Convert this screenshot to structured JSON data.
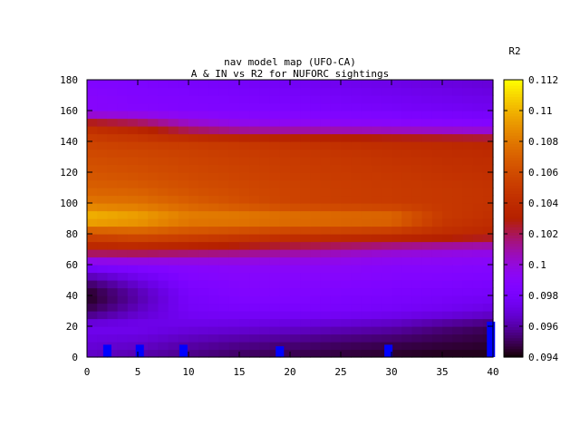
{
  "chart_data": {
    "type": "heatmap",
    "title": "nav model map (UFO-CA)",
    "subtitle": "A & IN vs R2 for NUFORC sightings",
    "xlabel": "",
    "ylabel": "",
    "colorbar_label": "R2",
    "xlim": [
      0,
      40
    ],
    "ylim": [
      0,
      180
    ],
    "x_ticks": [
      0,
      5,
      10,
      15,
      20,
      25,
      30,
      35,
      40
    ],
    "y_ticks": [
      0,
      20,
      40,
      60,
      80,
      100,
      120,
      140,
      160,
      180
    ],
    "colorbar_range": [
      0.094,
      0.112
    ],
    "colorbar_ticks": [
      0.094,
      0.096,
      0.098,
      0.1,
      0.102,
      0.104,
      0.106,
      0.108,
      0.11,
      0.112
    ],
    "colormap": "black-blue-purple-red-orange-yellow (gnuplot pm3d)",
    "y_levels": [
      0,
      10,
      20,
      30,
      40,
      50,
      60,
      70,
      80,
      90,
      100,
      110,
      120,
      130,
      140,
      150,
      160,
      170,
      180
    ],
    "x_levels": [
      0,
      5,
      10,
      15,
      20,
      25,
      30,
      35,
      40
    ],
    "z": [
      [
        0.0965,
        0.096,
        0.0955,
        0.095,
        0.0948,
        0.0946,
        0.0944,
        0.0942,
        0.0942
      ],
      [
        0.097,
        0.0968,
        0.0962,
        0.0958,
        0.0955,
        0.0952,
        0.095,
        0.0948,
        0.0946
      ],
      [
        0.0975,
        0.0975,
        0.0972,
        0.097,
        0.0968,
        0.0965,
        0.0962,
        0.0955,
        0.095
      ],
      [
        0.095,
        0.0965,
        0.0978,
        0.098,
        0.098,
        0.098,
        0.0978,
        0.0975,
        0.097
      ],
      [
        0.0942,
        0.096,
        0.098,
        0.0985,
        0.0985,
        0.0983,
        0.0982,
        0.098,
        0.0978
      ],
      [
        0.0955,
        0.097,
        0.0985,
        0.0988,
        0.0988,
        0.0988,
        0.0986,
        0.0985,
        0.0983
      ],
      [
        0.0985,
        0.0988,
        0.099,
        0.0992,
        0.0992,
        0.0992,
        0.099,
        0.099,
        0.0988
      ],
      [
        0.103,
        0.103,
        0.1025,
        0.102,
        0.1015,
        0.101,
        0.1005,
        0.1002,
        0.1
      ],
      [
        0.106,
        0.1065,
        0.106,
        0.1055,
        0.105,
        0.1048,
        0.1045,
        0.104,
        0.1035
      ],
      [
        0.1105,
        0.1098,
        0.1085,
        0.1085,
        0.1082,
        0.108,
        0.1078,
        0.105,
        0.1042
      ],
      [
        0.108,
        0.1078,
        0.107,
        0.1062,
        0.1055,
        0.1052,
        0.105,
        0.1048,
        0.1045
      ],
      [
        0.107,
        0.1068,
        0.1062,
        0.1058,
        0.1055,
        0.1052,
        0.105,
        0.1048,
        0.1045
      ],
      [
        0.1065,
        0.1062,
        0.1058,
        0.1055,
        0.1052,
        0.105,
        0.1048,
        0.1045,
        0.1042
      ],
      [
        0.106,
        0.1058,
        0.1055,
        0.1052,
        0.105,
        0.1048,
        0.1045,
        0.1042,
        0.104
      ],
      [
        0.1055,
        0.1052,
        0.105,
        0.1048,
        0.1045,
        0.1042,
        0.104,
        0.1038,
        0.1035
      ],
      [
        0.104,
        0.103,
        0.101,
        0.1,
        0.0998,
        0.0996,
        0.0994,
        0.0992,
        0.099
      ],
      [
        0.099,
        0.0988,
        0.0986,
        0.0985,
        0.0984,
        0.0982,
        0.098,
        0.0978,
        0.0976
      ],
      [
        0.099,
        0.0986,
        0.0984,
        0.0982,
        0.098,
        0.0978,
        0.0976,
        0.0974,
        0.0972
      ],
      [
        0.0985,
        0.0983,
        0.098,
        0.0978,
        0.0976,
        0.0974,
        0.0972,
        0.097,
        0.0968
      ]
    ],
    "markers": [
      {
        "x": 2,
        "y": 8
      },
      {
        "x": 5.2,
        "y": 8
      },
      {
        "x": 9.5,
        "y": 8
      },
      {
        "x": 19,
        "y": 7
      },
      {
        "x": 29.7,
        "y": 8
      },
      {
        "x": 39.8,
        "y": 23
      }
    ],
    "marker_color": "#0000ff"
  }
}
